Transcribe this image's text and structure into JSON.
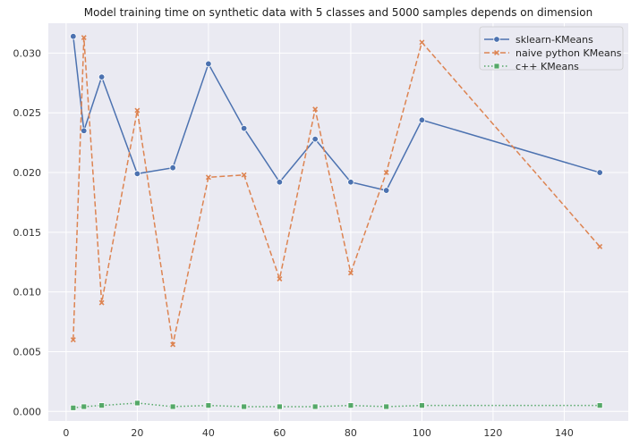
{
  "chart_data": {
    "type": "line",
    "title": "Model training time on synthetic data with 5 classes and 5000 samples depends on dimension",
    "xlabel": "",
    "ylabel": "",
    "xlim": [
      -5,
      158
    ],
    "ylim": [
      -0.0008,
      0.0325
    ],
    "x_ticks": [
      0,
      20,
      40,
      60,
      80,
      100,
      120,
      140
    ],
    "y_ticks": [
      0.0,
      0.005,
      0.01,
      0.015,
      0.02,
      0.025,
      0.03
    ],
    "y_tick_labels": [
      "0.000",
      "0.005",
      "0.010",
      "0.015",
      "0.020",
      "0.025",
      "0.030"
    ],
    "grid": true,
    "legend_position": "top-right",
    "series": [
      {
        "name": "sklearn-KMeans",
        "color": "#4c72b0",
        "dash": "solid",
        "marker": "circle",
        "x": [
          2,
          5,
          10,
          20,
          30,
          40,
          50,
          60,
          70,
          80,
          90,
          100,
          150
        ],
        "y": [
          0.0314,
          0.0235,
          0.028,
          0.0199,
          0.0204,
          0.0291,
          0.0237,
          0.0192,
          0.0228,
          0.0192,
          0.0185,
          0.0244,
          0.02
        ]
      },
      {
        "name": "naive python KMeans",
        "color": "#dd8452",
        "dash": "dashed",
        "marker": "x",
        "x": [
          2,
          5,
          10,
          20,
          30,
          40,
          50,
          60,
          70,
          80,
          90,
          100,
          150
        ],
        "y": [
          0.006,
          0.0313,
          0.0091,
          0.0252,
          0.0056,
          0.0196,
          0.0198,
          0.0111,
          0.0253,
          0.0116,
          0.02,
          0.0309,
          0.0138
        ]
      },
      {
        "name": "c++ KMeans",
        "color": "#55a868",
        "dash": "dotted",
        "marker": "square",
        "x": [
          2,
          5,
          10,
          20,
          30,
          40,
          50,
          60,
          70,
          80,
          90,
          100,
          150
        ],
        "y": [
          0.0003,
          0.0004,
          0.0005,
          0.0007,
          0.0004,
          0.0005,
          0.0004,
          0.0004,
          0.0004,
          0.0005,
          0.0004,
          0.0005,
          0.0005
        ]
      }
    ]
  }
}
